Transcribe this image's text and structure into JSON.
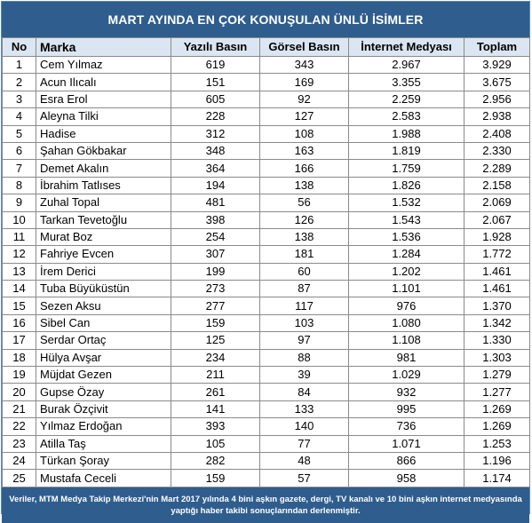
{
  "title": "MART AYINDA EN ÇOK KONUŞULAN ÜNLÜ İSİMLER",
  "columns": [
    "No",
    "Marka",
    "Yazılı Basın",
    "Görsel Basın",
    "İnternet Medyası",
    "Toplam"
  ],
  "rows": [
    [
      "1",
      "Cem Yılmaz",
      "619",
      "343",
      "2.967",
      "3.929"
    ],
    [
      "2",
      "Acun Ilıcalı",
      "151",
      "169",
      "3.355",
      "3.675"
    ],
    [
      "3",
      "Esra Erol",
      "605",
      "92",
      "2.259",
      "2.956"
    ],
    [
      "4",
      "Aleyna Tilki",
      "228",
      "127",
      "2.583",
      "2.938"
    ],
    [
      "5",
      "Hadise",
      "312",
      "108",
      "1.988",
      "2.408"
    ],
    [
      "6",
      "Şahan Gökbakar",
      "348",
      "163",
      "1.819",
      "2.330"
    ],
    [
      "7",
      "Demet Akalın",
      "364",
      "166",
      "1.759",
      "2.289"
    ],
    [
      "8",
      "İbrahim Tatlıses",
      "194",
      "138",
      "1.826",
      "2.158"
    ],
    [
      "9",
      "Zuhal Topal",
      "481",
      "56",
      "1.532",
      "2.069"
    ],
    [
      "10",
      "Tarkan Tevetoğlu",
      "398",
      "126",
      "1.543",
      "2.067"
    ],
    [
      "11",
      "Murat Boz",
      "254",
      "138",
      "1.536",
      "1.928"
    ],
    [
      "12",
      "Fahriye Evcen",
      "307",
      "181",
      "1.284",
      "1.772"
    ],
    [
      "13",
      "İrem Derici",
      "199",
      "60",
      "1.202",
      "1.461"
    ],
    [
      "14",
      "Tuba Büyüküstün",
      "273",
      "87",
      "1.101",
      "1.461"
    ],
    [
      "15",
      "Sezen Aksu",
      "277",
      "117",
      "976",
      "1.370"
    ],
    [
      "16",
      "Sibel Can",
      "159",
      "103",
      "1.080",
      "1.342"
    ],
    [
      "17",
      "Serdar Ortaç",
      "125",
      "97",
      "1.108",
      "1.330"
    ],
    [
      "18",
      "Hülya Avşar",
      "234",
      "88",
      "981",
      "1.303"
    ],
    [
      "19",
      "Müjdat Gezen",
      "211",
      "39",
      "1.029",
      "1.279"
    ],
    [
      "20",
      "Gupse Özay",
      "261",
      "84",
      "932",
      "1.277"
    ],
    [
      "21",
      "Burak Özçivit",
      "141",
      "133",
      "995",
      "1.269"
    ],
    [
      "22",
      "Yılmaz Erdoğan",
      "393",
      "140",
      "736",
      "1.269"
    ],
    [
      "23",
      "Atilla Taş",
      "105",
      "77",
      "1.071",
      "1.253"
    ],
    [
      "24",
      "Türkan Şoray",
      "282",
      "48",
      "866",
      "1.196"
    ],
    [
      "25",
      "Mustafa Ceceli",
      "159",
      "57",
      "958",
      "1.174"
    ]
  ],
  "footer": {
    "line1": "Veriler, MTM Medya Takip Merkezi'nin Mart 2017 yılında 4 bini aşkın gazete, dergi, TV kanalı ve 10 bini aşkın internet medyasında",
    "line2": "yaptığı haber takibi sonuçlarından derlenmiştir."
  },
  "colors": {
    "header_bg": "#2f5d8e",
    "column_header_bg": "#dbe6f2",
    "grid": "#8a8a8a"
  }
}
